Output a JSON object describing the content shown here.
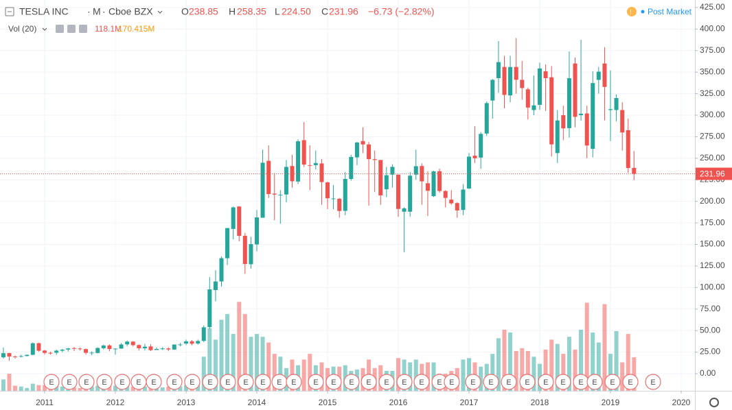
{
  "header": {
    "symbol": "TESLA INC",
    "interval": "M",
    "exchange": "Cboe BZX",
    "o_label": "O",
    "open": "238.85",
    "h_label": "H",
    "high": "258.35",
    "l_label": "L",
    "low": "224.50",
    "c_label": "C",
    "close": "231.96",
    "change": "−6.73 (−2.82%)",
    "vol_label": "Vol (20)",
    "volume": "118.1M",
    "volume_ma": "170.415M",
    "session": "Post Market"
  },
  "chart_data": {
    "type": "candlestick",
    "up_color": "#26a69a",
    "down_color": "#ef5350",
    "grid": true,
    "x": [
      2010.417,
      2010.5,
      2010.583,
      2010.667,
      2010.75,
      2010.833,
      2010.917,
      2011.0,
      2011.083,
      2011.167,
      2011.25,
      2011.333,
      2011.417,
      2011.5,
      2011.583,
      2011.667,
      2011.75,
      2011.833,
      2011.917,
      2012.0,
      2012.083,
      2012.167,
      2012.25,
      2012.333,
      2012.417,
      2012.5,
      2012.583,
      2012.667,
      2012.75,
      2012.833,
      2012.917,
      2013.0,
      2013.083,
      2013.167,
      2013.25,
      2013.333,
      2013.417,
      2013.5,
      2013.583,
      2013.667,
      2013.75,
      2013.833,
      2013.917,
      2014.0,
      2014.083,
      2014.167,
      2014.25,
      2014.333,
      2014.417,
      2014.5,
      2014.583,
      2014.667,
      2014.75,
      2014.833,
      2014.917,
      2015.0,
      2015.083,
      2015.167,
      2015.25,
      2015.333,
      2015.417,
      2015.5,
      2015.583,
      2015.667,
      2015.75,
      2015.833,
      2015.917,
      2016.0,
      2016.083,
      2016.167,
      2016.25,
      2016.333,
      2016.417,
      2016.5,
      2016.583,
      2016.667,
      2016.75,
      2016.833,
      2016.917,
      2017.0,
      2017.083,
      2017.167,
      2017.25,
      2017.333,
      2017.417,
      2017.5,
      2017.583,
      2017.667,
      2017.75,
      2017.833,
      2017.917,
      2018.0,
      2018.083,
      2018.167,
      2018.25,
      2018.333,
      2018.417,
      2018.5,
      2018.583,
      2018.667,
      2018.75,
      2018.833,
      2018.917,
      2019.0,
      2019.083,
      2019.167,
      2019.25,
      2019.333
    ],
    "open": [
      19.0,
      23.9,
      20.0,
      19.6,
      20.5,
      21.9,
      35.4,
      26.8,
      24.2,
      24.3,
      26.6,
      28.0,
      29.6,
      29.2,
      28.5,
      24.3,
      24.0,
      29.5,
      32.8,
      28.9,
      29.1,
      34.0,
      37.2,
      33.2,
      29.4,
      31.6,
      27.5,
      28.4,
      29.3,
      28.0,
      33.8,
      35.0,
      37.5,
      35.0,
      38.0,
      54.0,
      97.0,
      107.0,
      134.0,
      168.0,
      194.0,
      160.0,
      127.0,
      150.0,
      181.0,
      247.0,
      209.0,
      207.0,
      208.0,
      241.0,
      223.0,
      271.0,
      242.0,
      242.0,
      244.0,
      222.0,
      203.0,
      203.0,
      189.0,
      226.0,
      251.0,
      270.0,
      266.0,
      249.0,
      248.0,
      214.0,
      231.0,
      231.0,
      188.0,
      188.0,
      231.0,
      241.0,
      221.0,
      206.0,
      235.0,
      212.0,
      202.0,
      198.0,
      190.0,
      214.9,
      253.0,
      250.8,
      278.7,
      317.0,
      343.0,
      356.0,
      323.0,
      356.0,
      341.0,
      330.0,
      306.0,
      312.0,
      351.0,
      344.0,
      256.0,
      300.0,
      285.0,
      360.0,
      300.0,
      302.0,
      261.0,
      341.0,
      360.0,
      306.0,
      306.0,
      306.0,
      282.6,
      238.85
    ],
    "high": [
      30.4,
      24.2,
      21.0,
      22.0,
      22.2,
      36.4,
      35.9,
      27.5,
      25.4,
      27.8,
      28.9,
      29.9,
      31.1,
      30.2,
      29.1,
      26.0,
      30.5,
      33.7,
      34.0,
      29.4,
      35.5,
      38.4,
      37.7,
      34.0,
      34.5,
      34.1,
      30.5,
      30.8,
      30.5,
      34.0,
      35.7,
      39.5,
      39.0,
      39.5,
      56.0,
      112.0,
      120.0,
      136.0,
      169.0,
      194.0,
      194.5,
      163.5,
      159.0,
      190.0,
      260.0,
      265.0,
      233.0,
      213.0,
      248.0,
      254.0,
      272.0,
      292.0,
      265.0,
      259.0,
      249.0,
      223.0,
      219.0,
      204.0,
      234.0,
      254.0,
      269.0,
      286.0,
      269.0,
      259.0,
      248.0,
      240.0,
      243.0,
      231.0,
      193.0,
      234.0,
      260.0,
      244.0,
      235.0,
      235.5,
      238.0,
      213.0,
      213.0,
      199.0,
      220.0,
      256.0,
      287.3,
      280.4,
      316.0,
      342.0,
      386.0,
      369.0,
      369.0,
      389.6,
      363.0,
      332.0,
      346.0,
      361.0,
      359.0,
      357.0,
      306.0,
      311.0,
      374.0,
      367.0,
      387.5,
      311.0,
      351.0,
      356.0,
      379.0,
      352.0,
      324.0,
      315.0,
      296.0,
      258.35
    ],
    "low": [
      17.5,
      15.0,
      17.4,
      18.9,
      20.0,
      21.3,
      25.5,
      22.1,
      22.1,
      21.8,
      24.9,
      25.7,
      26.3,
      26.9,
      22.0,
      21.5,
      23.4,
      28.0,
      26.0,
      22.2,
      28.9,
      32.0,
      31.6,
      26.9,
      26.9,
      26.3,
      27.4,
      27.4,
      26.2,
      27.8,
      31.8,
      33.0,
      33.0,
      33.6,
      36.6,
      52.0,
      84.0,
      101.0,
      126.0,
      156.0,
      153.5,
      116.0,
      122.0,
      142.0,
      181.0,
      204.0,
      178.0,
      174.0,
      199.0,
      216.0,
      220.0,
      240.0,
      213.0,
      237.0,
      196.0,
      191.0,
      191.0,
      181.0,
      184.0,
      224.0,
      242.0,
      256.0,
      195.0,
      211.0,
      196.0,
      205.0,
      216.0,
      182.0,
      141.0,
      182.0,
      225.0,
      196.0,
      183.0,
      205.0,
      210.0,
      193.0,
      196.0,
      181.0,
      184.0,
      214.3,
      244.6,
      237.8,
      276.0,
      296.0,
      326.0,
      308.0,
      315.0,
      325.0,
      318.0,
      295.0,
      300.0,
      306.0,
      305.0,
      252.0,
      244.6,
      271.0,
      274.0,
      286.0,
      293.7,
      250.0,
      251.0,
      325.0,
      294.0,
      270.0,
      293.0,
      259.0,
      233.0,
      224.5
    ],
    "close": [
      23.8,
      19.9,
      19.5,
      20.4,
      21.8,
      35.3,
      26.6,
      24.1,
      23.9,
      26.7,
      27.8,
      29.3,
      29.1,
      28.6,
      24.2,
      24.4,
      29.8,
      32.7,
      28.6,
      29.1,
      33.9,
      37.2,
      33.1,
      29.5,
      31.3,
      27.3,
      28.7,
      29.3,
      28.1,
      33.8,
      33.9,
      37.5,
      34.8,
      37.9,
      53.8,
      97.8,
      107.0,
      134.0,
      169.0,
      193.0,
      159.9,
      127.3,
      150.4,
      181.4,
      244.8,
      208.5,
      207.9,
      207.8,
      240.0,
      223.3,
      269.7,
      242.7,
      241.7,
      244.5,
      222.4,
      203.6,
      203.3,
      188.8,
      226.0,
      251.5,
      268.3,
      266.0,
      249.0,
      248.0,
      206.9,
      230.3,
      240.0,
      191.2,
      191.9,
      229.8,
      240.8,
      223.2,
      212.3,
      234.8,
      212.0,
      204.0,
      197.7,
      189.4,
      213.7,
      251.9,
      250.0,
      278.3,
      314.0,
      341.0,
      361.6,
      323.5,
      355.9,
      341.1,
      331.5,
      308.9,
      311.4,
      354.3,
      343.0,
      266.1,
      293.9,
      284.7,
      342.9,
      298.1,
      301.7,
      264.8,
      337.3,
      350.5,
      332.8,
      307.0,
      319.9,
      279.9,
      238.7,
      231.96
    ],
    "volume": [
      40,
      60,
      18,
      15,
      10,
      25,
      20,
      20,
      15,
      18,
      15,
      15,
      12,
      10,
      20,
      15,
      18,
      15,
      20,
      18,
      22,
      20,
      15,
      20,
      15,
      15,
      10,
      12,
      15,
      20,
      15,
      20,
      18,
      25,
      120,
      220,
      180,
      250,
      270,
      200,
      313,
      270,
      190,
      200,
      190,
      170,
      130,
      120,
      80,
      110,
      90,
      110,
      130,
      90,
      100,
      80,
      85,
      85,
      90,
      70,
      75,
      80,
      110,
      80,
      90,
      70,
      70,
      115,
      110,
      100,
      110,
      95,
      100,
      100,
      60,
      60,
      70,
      80,
      110,
      115,
      100,
      85,
      95,
      130,
      185,
      215,
      205,
      140,
      150,
      140,
      120,
      95,
      145,
      180,
      165,
      130,
      190,
      145,
      215,
      310,
      205,
      170,
      305,
      130,
      210,
      100,
      200,
      118.1
    ],
    "vol_ylim": [
      0,
      1375
    ],
    "xlim": [
      2010.369,
      2020.194
    ],
    "xticks": [
      2011,
      2012,
      2013,
      2014,
      2015,
      2016,
      2017,
      2018,
      2019,
      2020
    ],
    "ylim": [
      -19.9,
      433.7
    ],
    "yticks": [
      {
        "value": 0,
        "label": "0.00"
      },
      {
        "value": 25,
        "label": "25.00"
      },
      {
        "value": 50,
        "label": "50.00"
      },
      {
        "value": 75,
        "label": "75.00"
      },
      {
        "value": 100,
        "label": "100.00"
      },
      {
        "value": 125,
        "label": "125.00"
      },
      {
        "value": 150,
        "label": "150.00"
      },
      {
        "value": 175,
        "label": "175.00"
      },
      {
        "value": 200,
        "label": "200.00"
      },
      {
        "value": 225,
        "label": "225.00"
      },
      {
        "value": 250,
        "label": "250.00"
      },
      {
        "value": 275,
        "label": "275.00"
      },
      {
        "value": 300,
        "label": "300.00"
      },
      {
        "value": 325,
        "label": "325.00"
      },
      {
        "value": 350,
        "label": "350.00"
      },
      {
        "value": 375,
        "label": "375.00"
      },
      {
        "value": 400,
        "label": "400.00"
      },
      {
        "value": 425,
        "label": "425.00"
      }
    ],
    "earnings_label": "E",
    "earnings_x": [
      2011.097,
      2011.35,
      2011.592,
      2011.845,
      2012.097,
      2012.33,
      2012.544,
      2012.835,
      2013.087,
      2013.34,
      2013.592,
      2013.845,
      2014.087,
      2014.32,
      2014.524,
      2014.835,
      2015.087,
      2015.34,
      2015.583,
      2015.835,
      2016.087,
      2016.33,
      2016.583,
      2016.757,
      2017.058,
      2017.311,
      2017.563,
      2017.825,
      2018.087,
      2018.33,
      2018.583,
      2018.777,
      2019.029,
      2019.282,
      2019.602
    ]
  }
}
